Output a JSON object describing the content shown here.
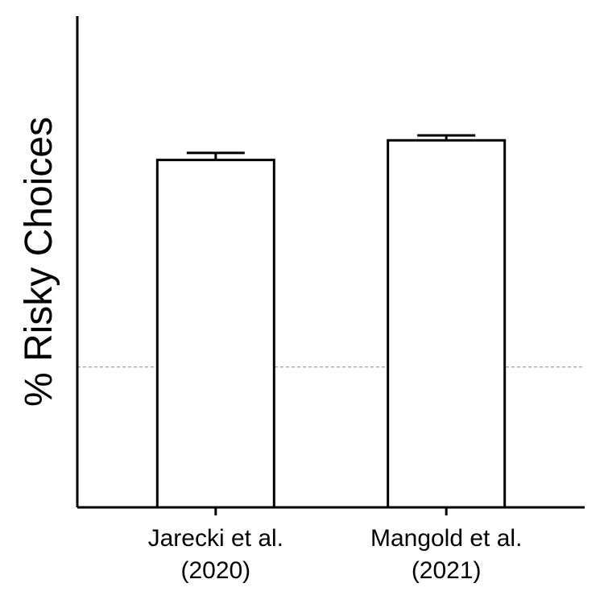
{
  "chart_data": {
    "type": "bar",
    "title": "",
    "xlabel": "",
    "ylabel": "% Risky Choices",
    "categories": [
      [
        "Jarecki et al.",
        "(2020)"
      ],
      [
        "Mangold et al.",
        "(2021)"
      ]
    ],
    "values": [
      0.795,
      0.823
    ],
    "errors": [
      0.01,
      0.007
    ],
    "ylim": [
      0.3,
      1.0
    ],
    "reference_line": 0.5,
    "show_y_ticks": false,
    "grid": false,
    "colors": {
      "bar_fill": "#ffffff",
      "bar_stroke": "#000000",
      "axis": "#000000",
      "reference_line": "#888888"
    }
  }
}
